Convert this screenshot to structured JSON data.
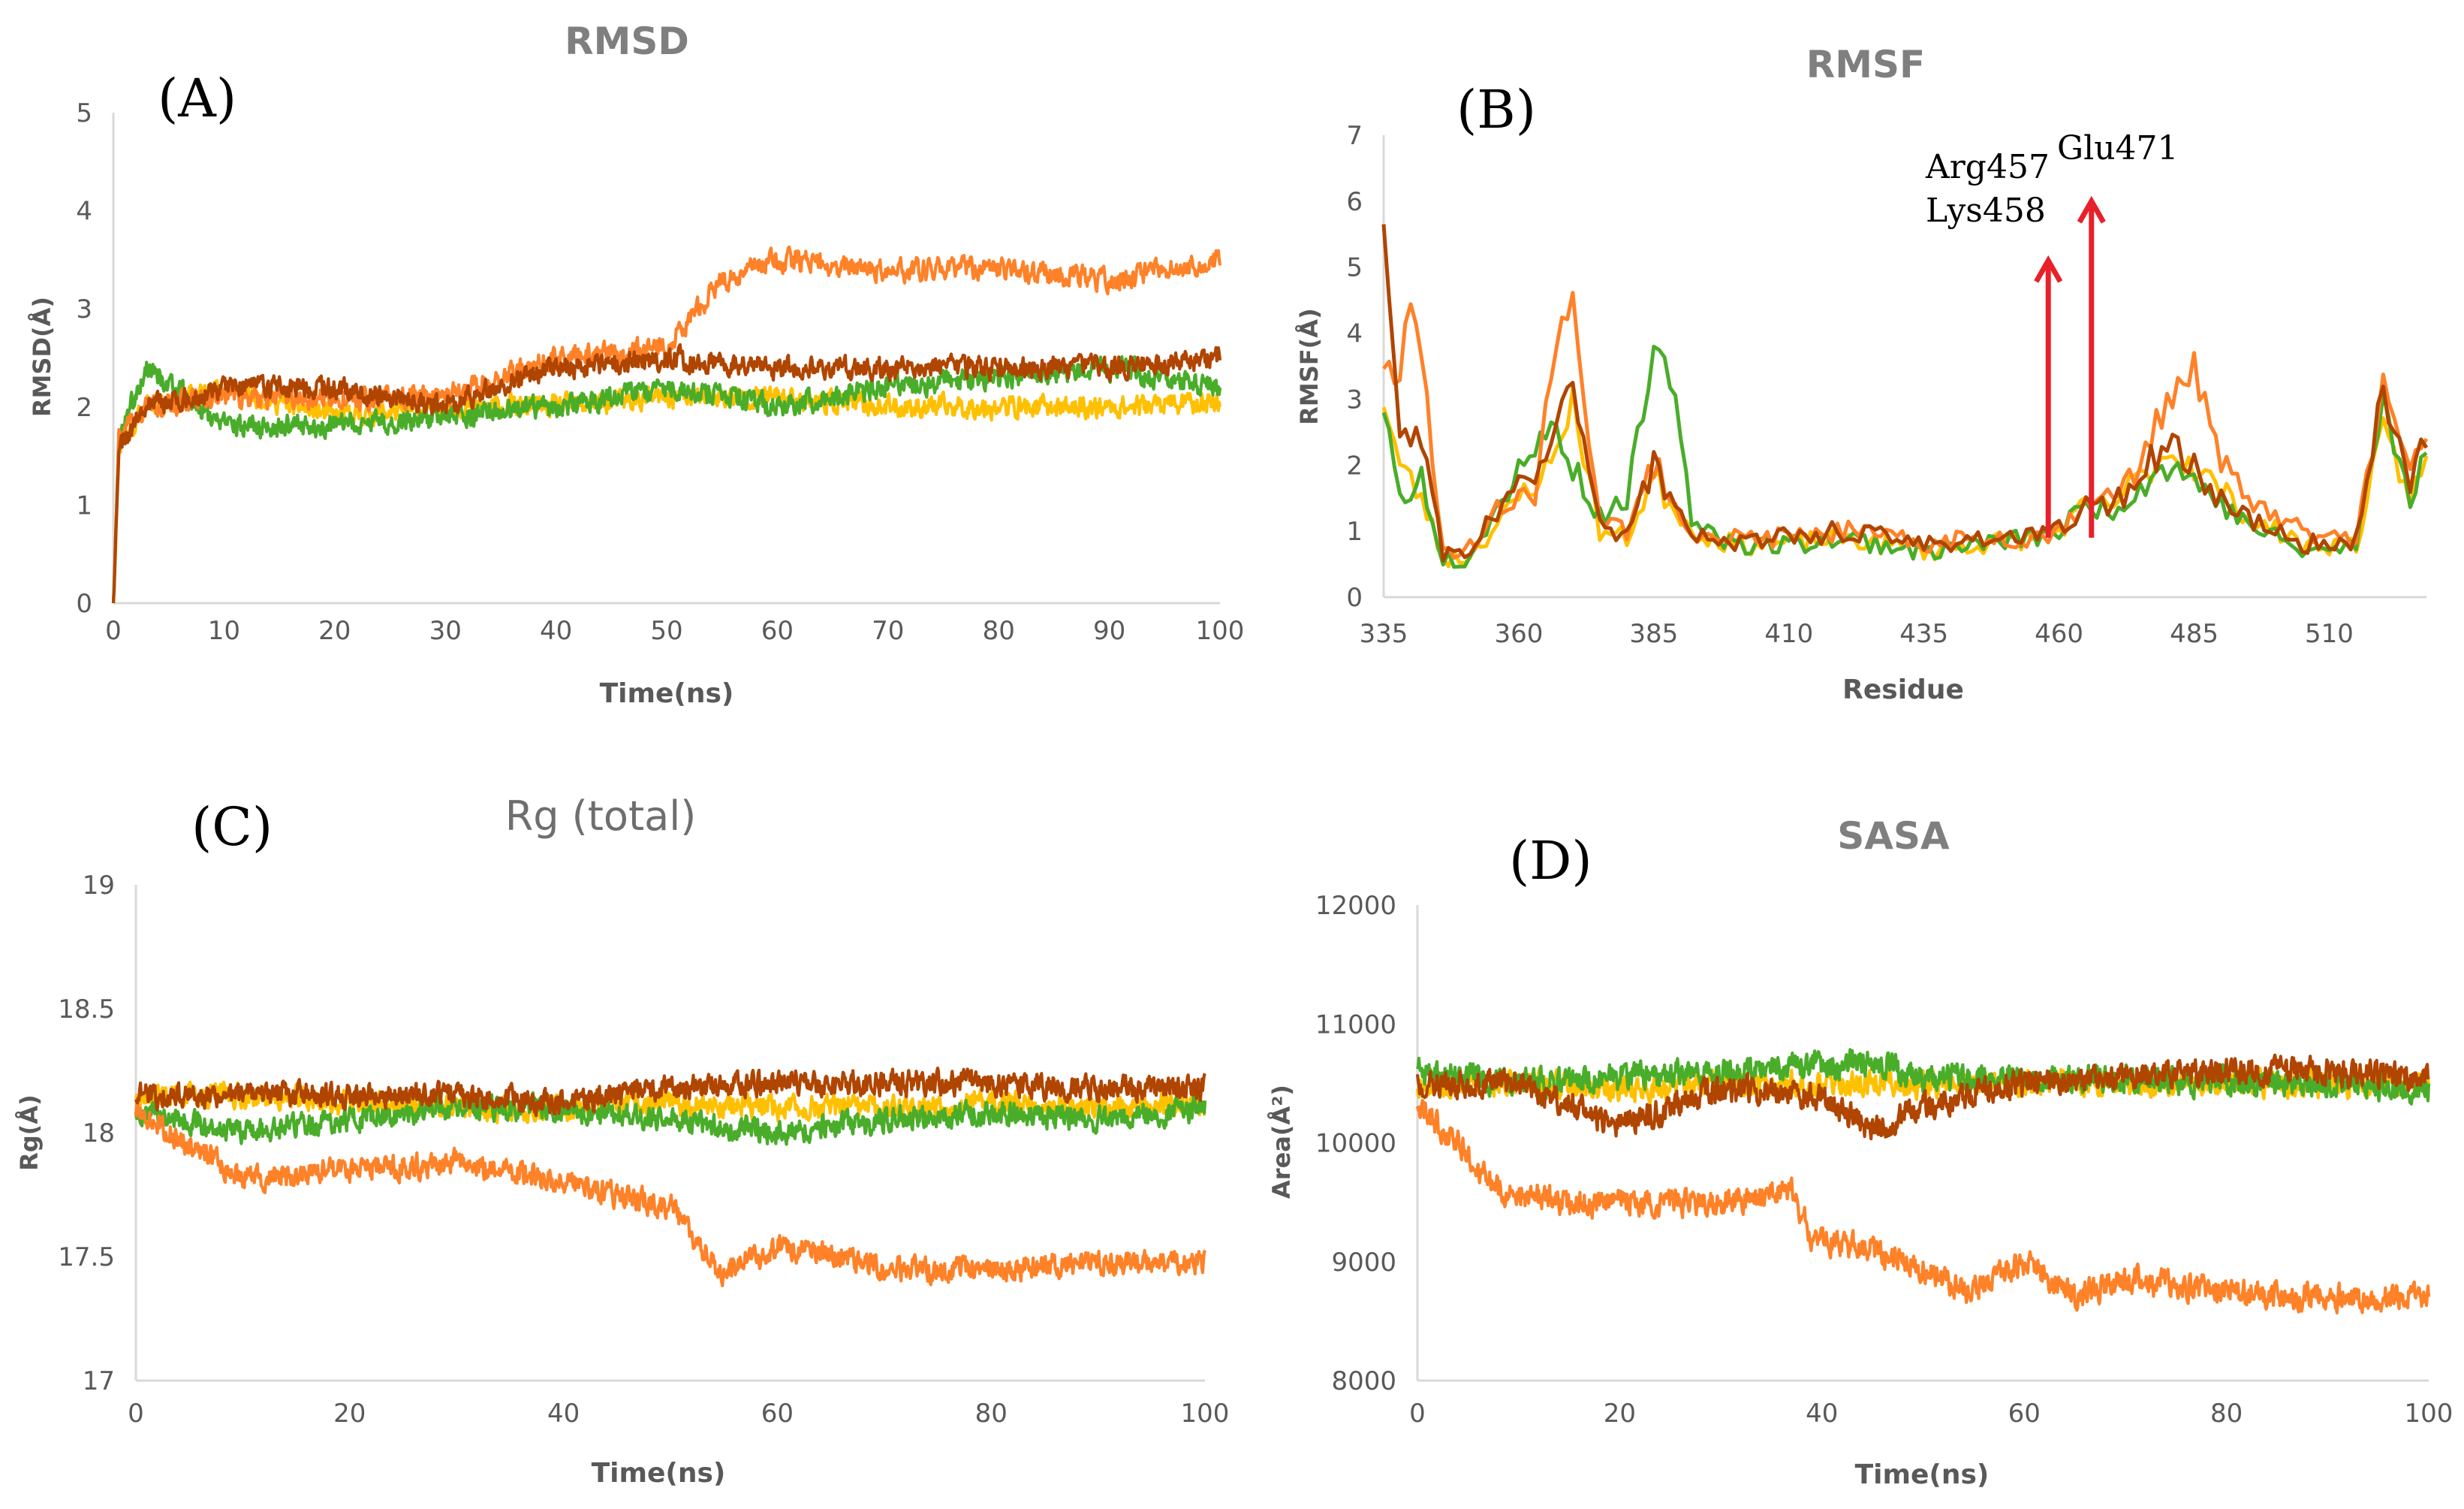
{
  "chart_data": [
    {
      "panel": "(A)",
      "type": "line",
      "title": "RMSD",
      "xlabel": "Time(ns)",
      "ylabel": "RMSD(Å)",
      "xlim": [
        0,
        100
      ],
      "ylim": [
        0,
        5
      ],
      "xticks": [
        0,
        10,
        20,
        30,
        40,
        50,
        60,
        70,
        80,
        90,
        100
      ],
      "yticks": [
        0,
        1,
        2,
        3,
        4,
        5
      ],
      "xtick_labels": [
        "0",
        "10",
        "20",
        "30",
        "40",
        "50",
        "60",
        "70",
        "80",
        "90",
        "100"
      ],
      "ytick_labels": [
        "0",
        "1",
        "2",
        "3",
        "4",
        "5"
      ],
      "noise": 0.17,
      "grid": false,
      "series": [
        {
          "color": "#ffc000",
          "x": [
            0,
            0.5,
            3,
            10,
            20,
            30,
            40,
            50,
            60,
            70,
            80,
            90,
            100
          ],
          "values": [
            0,
            1.6,
            2.0,
            2.2,
            1.9,
            2.0,
            2.0,
            2.1,
            2.1,
            2.0,
            2.0,
            2.0,
            2.05
          ]
        },
        {
          "color": "#4aad2a",
          "x": [
            0,
            0.5,
            3,
            10,
            20,
            30,
            40,
            50,
            60,
            70,
            80,
            90,
            100
          ],
          "values": [
            0,
            1.7,
            2.4,
            1.8,
            1.8,
            1.9,
            2.0,
            2.2,
            2.0,
            2.2,
            2.3,
            2.4,
            2.2
          ]
        },
        {
          "color": "#ff8128",
          "x": [
            0,
            0.5,
            3,
            10,
            20,
            30,
            40,
            50,
            55,
            60,
            70,
            80,
            90,
            100
          ],
          "values": [
            0,
            1.7,
            2.0,
            2.1,
            2.1,
            2.1,
            2.5,
            2.6,
            3.3,
            3.5,
            3.4,
            3.4,
            3.3,
            3.5
          ]
        },
        {
          "color": "#b04500",
          "x": [
            0,
            0.5,
            3,
            10,
            20,
            30,
            40,
            50,
            60,
            70,
            80,
            90,
            100
          ],
          "values": [
            0,
            1.6,
            2.0,
            2.2,
            2.2,
            2.0,
            2.4,
            2.5,
            2.4,
            2.4,
            2.4,
            2.4,
            2.5
          ]
        }
      ]
    },
    {
      "panel": "(B)",
      "type": "line",
      "title": "RMSF",
      "xlabel": "Residue",
      "ylabel": "RMSF(Å)",
      "xlim": [
        335,
        528
      ],
      "ylim": [
        0,
        7
      ],
      "xticks": [
        335,
        360,
        385,
        410,
        435,
        460,
        485,
        510
      ],
      "yticks": [
        0,
        1,
        2,
        3,
        4,
        5,
        6,
        7
      ],
      "xtick_labels": [
        "335",
        "360",
        "385",
        "410",
        "435",
        "460",
        "485",
        "510"
      ],
      "ytick_labels": [
        "0",
        "1",
        "2",
        "3",
        "4",
        "5",
        "6",
        "7"
      ],
      "noise": 0.2,
      "grid": false,
      "annotations": [
        {
          "text_lines": [
            "Arg457",
            "Lys458"
          ],
          "x": 458,
          "arrow_from": 0.9,
          "arrow_to": 5.1,
          "color": "#e8202a"
        },
        {
          "text_lines": [
            "Glu471"
          ],
          "x": 466,
          "arrow_from": 0.9,
          "arrow_to": 6.0,
          "color": "#e8202a"
        }
      ],
      "series": [
        {
          "color": "#ffc000",
          "x": [
            335,
            338,
            342,
            346,
            350,
            355,
            360,
            366,
            370,
            375,
            380,
            385,
            392,
            400,
            410,
            420,
            435,
            445,
            455,
            460,
            465,
            470,
            475,
            480,
            485,
            490,
            495,
            500,
            505,
            510,
            515,
            520,
            525,
            528
          ],
          "values": [
            3.0,
            2.0,
            1.5,
            0.6,
            0.6,
            1.0,
            1.5,
            2.0,
            3.0,
            1.0,
            0.9,
            1.8,
            1.0,
            0.8,
            0.8,
            0.9,
            0.7,
            0.8,
            0.9,
            1.0,
            1.4,
            1.4,
            1.8,
            2.2,
            2.0,
            1.6,
            1.2,
            1.0,
            0.8,
            0.8,
            0.8,
            2.5,
            1.5,
            2.0
          ]
        },
        {
          "color": "#4aad2a",
          "x": [
            335,
            338,
            342,
            346,
            350,
            355,
            360,
            366,
            370,
            375,
            380,
            385,
            388,
            392,
            400,
            410,
            420,
            435,
            445,
            455,
            460,
            465,
            470,
            475,
            480,
            485,
            490,
            495,
            500,
            505,
            510,
            515,
            520,
            525,
            528
          ],
          "values": [
            2.9,
            1.5,
            1.8,
            0.6,
            0.6,
            1.2,
            2.0,
            2.6,
            2.0,
            1.2,
            1.5,
            3.6,
            3.4,
            1.2,
            0.8,
            0.8,
            0.9,
            0.7,
            0.8,
            0.9,
            1.0,
            1.4,
            1.3,
            1.7,
            2.0,
            1.8,
            1.4,
            1.1,
            0.9,
            0.7,
            0.7,
            0.8,
            3.0,
            1.5,
            2.3
          ]
        },
        {
          "color": "#ff8128",
          "x": [
            335,
            338,
            340,
            342,
            346,
            350,
            355,
            360,
            363,
            366,
            370,
            372,
            375,
            380,
            385,
            392,
            400,
            410,
            420,
            435,
            445,
            455,
            460,
            465,
            470,
            475,
            480,
            485,
            490,
            495,
            500,
            505,
            510,
            515,
            520,
            525,
            528
          ],
          "values": [
            3.3,
            3.5,
            4.4,
            3.8,
            0.7,
            0.6,
            1.3,
            1.6,
            1.4,
            3.5,
            4.7,
            3.0,
            1.2,
            1.0,
            2.0,
            1.0,
            0.9,
            0.9,
            1.0,
            0.8,
            0.9,
            0.9,
            1.0,
            1.5,
            1.5,
            2.0,
            3.0,
            3.5,
            2.0,
            1.5,
            1.2,
            1.0,
            0.9,
            0.9,
            3.2,
            1.8,
            2.5
          ]
        },
        {
          "color": "#b04500",
          "x": [
            335,
            336,
            338,
            342,
            346,
            350,
            355,
            360,
            366,
            370,
            375,
            380,
            385,
            392,
            400,
            410,
            420,
            435,
            445,
            455,
            460,
            465,
            470,
            475,
            480,
            485,
            490,
            495,
            500,
            505,
            510,
            515,
            520,
            525,
            528
          ],
          "values": [
            5.7,
            4.5,
            2.6,
            2.3,
            0.7,
            0.6,
            1.2,
            1.6,
            2.3,
            3.3,
            1.2,
            0.9,
            2.0,
            1.0,
            0.8,
            0.9,
            1.0,
            0.8,
            0.9,
            0.9,
            1.0,
            1.4,
            1.4,
            1.9,
            2.3,
            2.0,
            1.5,
            1.2,
            1.0,
            0.8,
            0.8,
            0.9,
            3.2,
            1.6,
            2.5
          ]
        }
      ]
    },
    {
      "panel": "(C)",
      "type": "line",
      "title": "Rg (total)",
      "xlabel": "Time(ns)",
      "ylabel": "Rg(Å)",
      "xlim": [
        0,
        100
      ],
      "ylim": [
        17,
        19
      ],
      "xticks": [
        0,
        20,
        40,
        60,
        80,
        100
      ],
      "yticks": [
        17,
        17.5,
        18,
        18.5,
        19
      ],
      "xtick_labels": [
        "0",
        "20",
        "40",
        "60",
        "80",
        "100"
      ],
      "ytick_labels": [
        "17",
        "17.5",
        "18",
        "18.5",
        "19"
      ],
      "noise": 0.075,
      "grid": false,
      "series": [
        {
          "color": "#ffc000",
          "x": [
            0,
            10,
            20,
            30,
            40,
            50,
            60,
            70,
            80,
            90,
            100
          ],
          "values": [
            18.15,
            18.15,
            18.12,
            18.1,
            18.1,
            18.12,
            18.1,
            18.1,
            18.12,
            18.1,
            18.12
          ]
        },
        {
          "color": "#4aad2a",
          "x": [
            0,
            10,
            20,
            30,
            40,
            50,
            60,
            70,
            80,
            90,
            100
          ],
          "values": [
            18.1,
            18.0,
            18.05,
            18.1,
            18.1,
            18.05,
            18.0,
            18.05,
            18.08,
            18.05,
            18.1
          ]
        },
        {
          "color": "#ff8128",
          "x": [
            0,
            5,
            10,
            20,
            30,
            40,
            50,
            55,
            60,
            70,
            80,
            90,
            100
          ],
          "values": [
            18.1,
            17.95,
            17.82,
            17.85,
            17.88,
            17.8,
            17.7,
            17.42,
            17.55,
            17.45,
            17.45,
            17.48,
            17.47
          ]
        },
        {
          "color": "#b04500",
          "x": [
            0,
            10,
            20,
            30,
            40,
            50,
            60,
            70,
            80,
            90,
            100
          ],
          "values": [
            18.15,
            18.15,
            18.15,
            18.15,
            18.12,
            18.18,
            18.2,
            18.2,
            18.2,
            18.18,
            18.18
          ]
        }
      ]
    },
    {
      "panel": "(D)",
      "type": "line",
      "title": "SASA",
      "xlabel": "Time(ns)",
      "ylabel": "Area(Å²)",
      "xlim": [
        0,
        100
      ],
      "ylim": [
        8000,
        12000
      ],
      "xticks": [
        0,
        20,
        40,
        60,
        80,
        100
      ],
      "yticks": [
        8000,
        9000,
        10000,
        11000,
        12000
      ],
      "xtick_labels": [
        "0",
        "20",
        "40",
        "60",
        "80",
        "100"
      ],
      "ytick_labels": [
        "8000",
        "9000",
        "10000",
        "11000",
        "12000"
      ],
      "noise": 170,
      "grid": false,
      "series": [
        {
          "color": "#ffc000",
          "x": [
            0,
            10,
            20,
            30,
            40,
            50,
            60,
            70,
            80,
            90,
            100
          ],
          "values": [
            10500,
            10500,
            10450,
            10500,
            10500,
            10500,
            10500,
            10500,
            10500,
            10500,
            10500
          ]
        },
        {
          "color": "#4aad2a",
          "x": [
            0,
            10,
            20,
            30,
            40,
            45,
            50,
            60,
            70,
            80,
            90,
            100
          ],
          "values": [
            10600,
            10500,
            10550,
            10600,
            10650,
            10700,
            10550,
            10550,
            10550,
            10500,
            10500,
            10450
          ]
        },
        {
          "color": "#ff8128",
          "x": [
            0,
            4,
            8,
            15,
            22,
            30,
            37,
            39,
            45,
            55,
            60,
            65,
            70,
            80,
            90,
            100
          ],
          "values": [
            10300,
            10000,
            9600,
            9500,
            9500,
            9500,
            9600,
            9200,
            9100,
            8750,
            9000,
            8700,
            8850,
            8750,
            8700,
            8700
          ]
        },
        {
          "color": "#b04500",
          "x": [
            0,
            10,
            20,
            30,
            40,
            45,
            50,
            60,
            70,
            80,
            90,
            100
          ],
          "values": [
            10500,
            10500,
            10150,
            10450,
            10400,
            10100,
            10300,
            10500,
            10550,
            10600,
            10600,
            10550
          ]
        }
      ]
    }
  ]
}
